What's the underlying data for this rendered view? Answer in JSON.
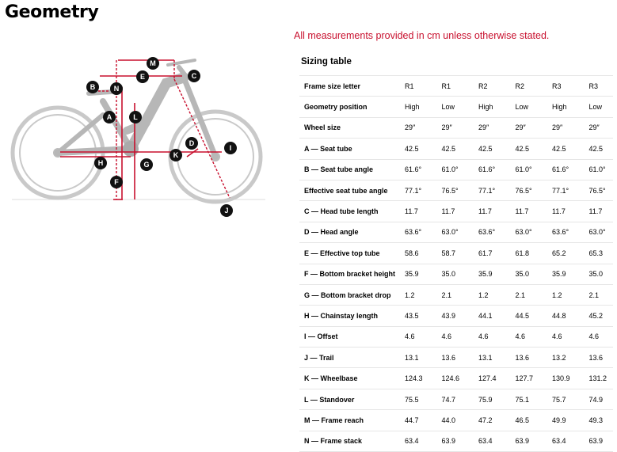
{
  "page": {
    "title": "Geometry",
    "note": "All measurements provided in cm unless otherwise stated.",
    "table_title": "Sizing table"
  },
  "diagram": {
    "markers": [
      "M",
      "E",
      "B",
      "N",
      "C",
      "A",
      "L",
      "D",
      "I",
      "H",
      "G",
      "K",
      "F",
      "J"
    ]
  },
  "table": {
    "rows": [
      {
        "label": "Frame size letter",
        "values": [
          "R1",
          "R1",
          "R2",
          "R2",
          "R3",
          "R3"
        ]
      },
      {
        "label": "Geometry position",
        "values": [
          "High",
          "Low",
          "High",
          "Low",
          "High",
          "Low"
        ]
      },
      {
        "label": "Wheel size",
        "values": [
          "29″",
          "29″",
          "29″",
          "29″",
          "29″",
          "29″"
        ]
      },
      {
        "label": "A — Seat tube",
        "values": [
          "42.5",
          "42.5",
          "42.5",
          "42.5",
          "42.5",
          "42.5"
        ]
      },
      {
        "label": "B — Seat tube angle",
        "values": [
          "61.6°",
          "61.0°",
          "61.6°",
          "61.0°",
          "61.6°",
          "61.0°"
        ]
      },
      {
        "label": "Effective seat tube angle",
        "values": [
          "77.1°",
          "76.5°",
          "77.1°",
          "76.5°",
          "77.1°",
          "76.5°"
        ]
      },
      {
        "label": "C — Head tube length",
        "values": [
          "11.7",
          "11.7",
          "11.7",
          "11.7",
          "11.7",
          "11.7"
        ]
      },
      {
        "label": "D — Head angle",
        "values": [
          "63.6°",
          "63.0°",
          "63.6°",
          "63.0°",
          "63.6°",
          "63.0°"
        ]
      },
      {
        "label": "E — Effective top tube",
        "values": [
          "58.6",
          "58.7",
          "61.7",
          "61.8",
          "65.2",
          "65.3"
        ]
      },
      {
        "label": "F — Bottom bracket height",
        "values": [
          "35.9",
          "35.0",
          "35.9",
          "35.0",
          "35.9",
          "35.0"
        ]
      },
      {
        "label": "G — Bottom bracket drop",
        "values": [
          "1.2",
          "2.1",
          "1.2",
          "2.1",
          "1.2",
          "2.1"
        ]
      },
      {
        "label": "H — Chainstay length",
        "values": [
          "43.5",
          "43.9",
          "44.1",
          "44.5",
          "44.8",
          "45.2"
        ]
      },
      {
        "label": "I — Offset",
        "values": [
          "4.6",
          "4.6",
          "4.6",
          "4.6",
          "4.6",
          "4.6"
        ]
      },
      {
        "label": "J — Trail",
        "values": [
          "13.1",
          "13.6",
          "13.1",
          "13.6",
          "13.2",
          "13.6"
        ]
      },
      {
        "label": "K — Wheelbase",
        "values": [
          "124.3",
          "124.6",
          "127.4",
          "127.7",
          "130.9",
          "131.2"
        ]
      },
      {
        "label": "L — Standover",
        "values": [
          "75.5",
          "74.7",
          "75.9",
          "75.1",
          "75.7",
          "74.9"
        ]
      },
      {
        "label": "M — Frame reach",
        "values": [
          "44.7",
          "44.0",
          "47.2",
          "46.5",
          "49.9",
          "49.3"
        ]
      },
      {
        "label": "N — Frame stack",
        "values": [
          "63.4",
          "63.9",
          "63.4",
          "63.9",
          "63.4",
          "63.9"
        ]
      }
    ]
  }
}
